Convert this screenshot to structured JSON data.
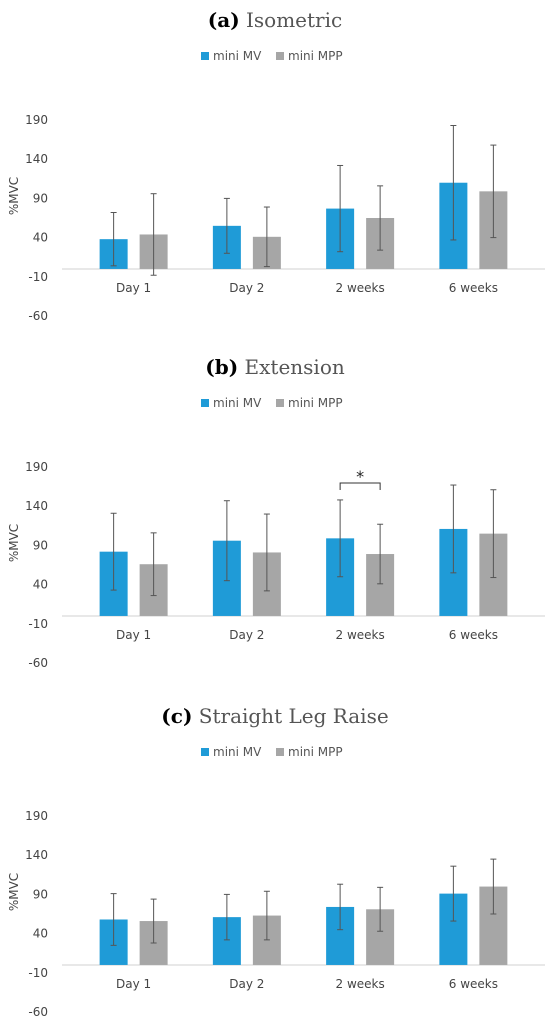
{
  "chart_data": [
    {
      "type": "bar",
      "panel_label": "a",
      "title": "Isometric",
      "categories": [
        "Day 1",
        "Day 2",
        "2 weeks",
        "6 weeks"
      ],
      "series": [
        {
          "name": "mini MV",
          "color": "#1f9bd7",
          "values": [
            38,
            55,
            77,
            110
          ],
          "error": [
            34,
            35,
            55,
            73
          ]
        },
        {
          "name": "mini MPP",
          "color": "#a6a6a6",
          "values": [
            44,
            41,
            65,
            99
          ],
          "error": [
            52,
            38,
            41,
            59
          ]
        }
      ],
      "ylabel": "%MVC",
      "yticks": [
        190,
        140,
        90,
        40,
        -10,
        -60
      ],
      "ylim": [
        -60,
        190
      ],
      "annotations": []
    },
    {
      "type": "bar",
      "panel_label": "b",
      "title": "Extension",
      "categories": [
        "Day 1",
        "Day 2",
        "2 weeks",
        "6 weeks"
      ],
      "series": [
        {
          "name": "mini MV",
          "color": "#1f9bd7",
          "values": [
            82,
            96,
            99,
            111
          ],
          "error": [
            49,
            51,
            49,
            56
          ]
        },
        {
          "name": "mini MPP",
          "color": "#a6a6a6",
          "values": [
            66,
            81,
            79,
            105
          ],
          "error": [
            40,
            49,
            38,
            56
          ]
        }
      ],
      "ylabel": "%MVC",
      "yticks": [
        190,
        140,
        90,
        40,
        -10,
        -60
      ],
      "ylim": [
        -60,
        190
      ],
      "annotations": [
        {
          "text": "*",
          "category_index": 2
        }
      ]
    },
    {
      "type": "bar",
      "panel_label": "c",
      "title": "Straight Leg Raise",
      "categories": [
        "Day 1",
        "Day 2",
        "2 weeks",
        "6 weeks"
      ],
      "series": [
        {
          "name": "mini MV",
          "color": "#1f9bd7",
          "values": [
            58,
            61,
            74,
            91
          ],
          "error": [
            33,
            29,
            29,
            35
          ]
        },
        {
          "name": "mini MPP",
          "color": "#a6a6a6",
          "values": [
            56,
            63,
            71,
            100
          ],
          "error": [
            28,
            31,
            28,
            35
          ]
        }
      ],
      "ylabel": "%MVC",
      "yticks": [
        190,
        140,
        90,
        40,
        -10,
        -60
      ],
      "ylim": [
        -60,
        190
      ],
      "annotations": []
    }
  ]
}
